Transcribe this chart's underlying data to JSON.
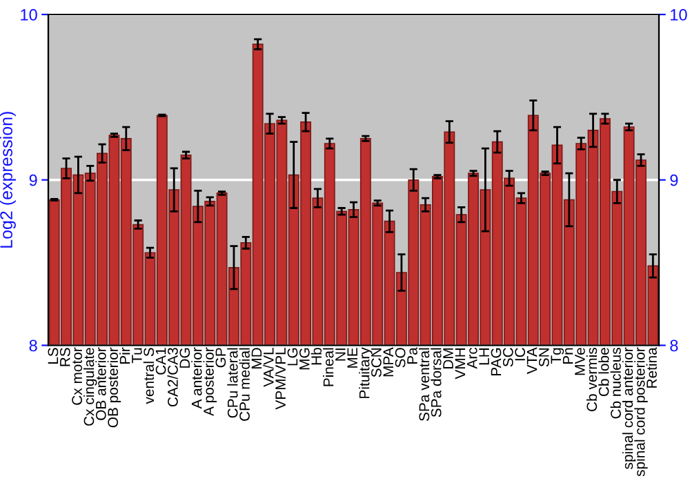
{
  "chart_data": {
    "type": "bar",
    "ylabel": "Log2 (expression)",
    "categories": [
      "LS",
      "RS",
      "Cx motor",
      "Cx cingulate",
      "OB anterior",
      "OB posterior",
      "Pir",
      "Tu",
      "ventral S",
      "CA1",
      "CA2/CA3",
      "DG",
      "A anterior",
      "A posterior",
      "GP",
      "CPu lateral",
      "CPu medial",
      "MD",
      "VA/VL",
      "VPM/VPL",
      "LG",
      "MG",
      "Hb",
      "Pineal",
      "NI",
      "ME",
      "Pituitary",
      "SCN",
      "MPA",
      "SO",
      "Pa",
      "SPa ventral",
      "SPa dorsal",
      "DM",
      "VMH",
      "Arc",
      "LH",
      "PAG",
      "SC",
      "IC",
      "VTA",
      "SN",
      "Tg",
      "Pn",
      "MVe",
      "Cb vermis",
      "Cb lobe",
      "Cb nucleus",
      "spinal cord anterior",
      "spinal cord posterior",
      "Retina"
    ],
    "values": [
      8.88,
      9.07,
      9.03,
      9.04,
      9.16,
      9.27,
      9.25,
      8.73,
      8.56,
      9.39,
      8.94,
      9.15,
      8.84,
      8.87,
      8.92,
      8.47,
      8.62,
      9.82,
      9.34,
      9.36,
      9.03,
      9.35,
      8.89,
      9.22,
      8.81,
      8.82,
      9.25,
      8.86,
      8.75,
      8.44,
      9.0,
      8.85,
      9.02,
      9.29,
      8.79,
      9.04,
      8.94,
      9.23,
      9.01,
      8.89,
      9.39,
      9.04,
      9.21,
      8.88,
      9.22,
      9.3,
      9.37,
      8.93,
      9.32,
      9.12,
      8.48
    ],
    "errors": [
      0.005,
      0.06,
      0.11,
      0.045,
      0.055,
      0.01,
      0.07,
      0.025,
      0.03,
      0.005,
      0.13,
      0.02,
      0.095,
      0.025,
      0.01,
      0.13,
      0.035,
      0.03,
      0.06,
      0.02,
      0.2,
      0.055,
      0.055,
      0.03,
      0.02,
      0.045,
      0.015,
      0.015,
      0.065,
      0.11,
      0.065,
      0.04,
      0.01,
      0.065,
      0.045,
      0.015,
      0.25,
      0.065,
      0.045,
      0.03,
      0.09,
      0.01,
      0.11,
      0.16,
      0.035,
      0.1,
      0.03,
      0.07,
      0.02,
      0.035,
      0.07
    ],
    "color": "#c0302e",
    "ylim": [
      8,
      10
    ],
    "yticks": [
      8,
      9,
      10
    ],
    "y2lim": [
      8,
      10
    ],
    "y2ticks": [
      8,
      9,
      10
    ],
    "grid": "y"
  }
}
